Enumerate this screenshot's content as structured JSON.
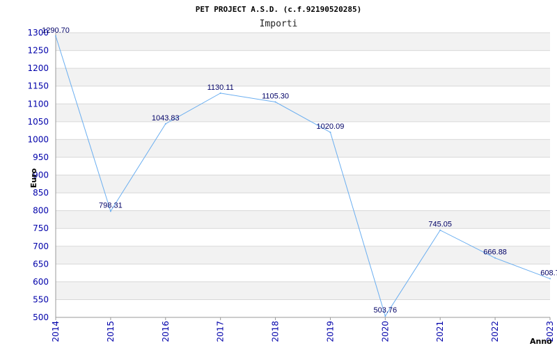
{
  "chart_data": {
    "type": "line",
    "title": "PET PROJECT A.S.D. (c.f.92190520285)",
    "subtitle": "Importi",
    "xlabel": "Anno",
    "ylabel": "Euro",
    "ylim": [
      500,
      1300
    ],
    "ytick_step": 50,
    "grid": true,
    "categories": [
      "2014",
      "2015",
      "2016",
      "2017",
      "2018",
      "2019",
      "2020",
      "2021",
      "2022",
      "2023"
    ],
    "series": [
      {
        "values": [
          1290.7,
          798.31,
          1043.83,
          1130.11,
          1105.3,
          1020.09,
          503.76,
          745.05,
          666.88,
          608.7
        ],
        "labels": [
          "1290.70",
          "798.31",
          "1043.83",
          "1130.11",
          "1105.30",
          "1020.09",
          "503.76",
          "745.05",
          "666.88",
          "608.7"
        ]
      }
    ],
    "colors": {
      "line": "#6aaef0",
      "band": "#f2f2f2",
      "grid": "#d8d8d8",
      "axis": "#999999",
      "tick_text": "#0000aa",
      "label_text": "#000066"
    }
  }
}
